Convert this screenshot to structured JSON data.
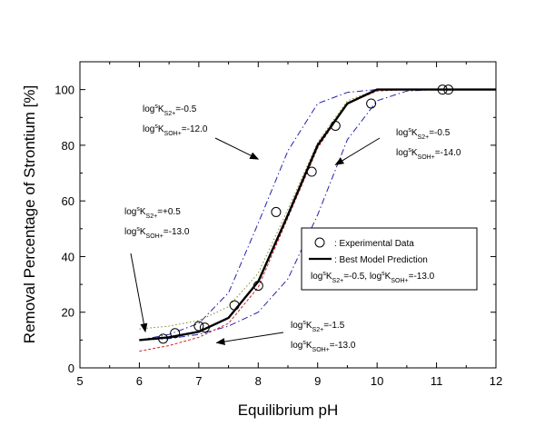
{
  "chart_data": {
    "type": "line",
    "title": "",
    "xlabel": "Equilibrium pH",
    "ylabel": "Removal Percentage of Strontium [%]",
    "xlim": [
      5,
      12
    ],
    "ylim": [
      0,
      110
    ],
    "x_ticks": [
      "5",
      "6",
      "7",
      "8",
      "9",
      "10",
      "11",
      "12"
    ],
    "y_ticks": [
      "0",
      "20",
      "40",
      "60",
      "80",
      "100"
    ],
    "grid": false,
    "legend_position": "right",
    "legend": {
      "experimental_label": ": Experimental Data",
      "model_label": ": Best Model Prediction",
      "params": {
        "k1_prefix": "log",
        "k1_sup": "s",
        "k1_main": "K",
        "k1_sub": "S2+",
        "k1_value": "=-0.5,",
        "k2_prefix": " log",
        "k2_sup": "s",
        "k2_main": "K",
        "k2_sub": "SOH+",
        "k2_value": "=-13.0"
      }
    },
    "series": [
      {
        "name": "Experimental Data",
        "style": "markers",
        "marker": "circle",
        "color": "#000000",
        "x": [
          6.4,
          6.6,
          7.0,
          7.1,
          7.6,
          8.0,
          8.3,
          8.9,
          9.3,
          9.9,
          11.1,
          11.2
        ],
        "y": [
          10.5,
          12.5,
          15,
          14.5,
          22.5,
          29.5,
          56,
          70.5,
          87,
          95,
          100,
          100
        ]
      },
      {
        "name": "Best Model Prediction",
        "style": "solid",
        "color": "#000000",
        "x": [
          6.0,
          6.5,
          7.0,
          7.5,
          8.0,
          8.5,
          9.0,
          9.5,
          10.0,
          10.5,
          11.0,
          12.0
        ],
        "y": [
          10,
          11,
          13,
          18,
          31,
          55,
          80,
          95,
          100,
          100,
          100,
          100
        ]
      },
      {
        "style": "dash-dot",
        "color": "#2222aa",
        "x": [
          6.0,
          6.5,
          7.0,
          7.5,
          8.0,
          8.5,
          9.0,
          9.5,
          10.0,
          10.5,
          12.0
        ],
        "y": [
          10,
          12,
          16,
          27,
          52,
          78,
          95,
          99,
          100,
          100,
          100
        ]
      },
      {
        "style": "dash-dot",
        "color": "#2222aa",
        "x": [
          6.0,
          6.5,
          7.0,
          7.5,
          8.0,
          8.5,
          9.0,
          9.5,
          10.0,
          10.5,
          11.0,
          12.0
        ],
        "y": [
          10,
          10.5,
          12,
          15,
          20,
          32,
          55,
          82,
          96,
          99.5,
          100,
          100
        ]
      },
      {
        "style": "dotted",
        "color": "#888822",
        "x": [
          6.0,
          6.5,
          7.0,
          7.5,
          8.0,
          8.5,
          9.0,
          9.5,
          10.0,
          10.5,
          12.0
        ],
        "y": [
          14,
          15,
          17,
          22,
          34,
          57,
          81,
          96,
          100,
          100,
          100
        ]
      },
      {
        "style": "dashed",
        "color": "#cc2222",
        "x": [
          6.0,
          6.5,
          7.0,
          7.5,
          8.0,
          8.5,
          9.0,
          9.5,
          10.0,
          10.5,
          12.0
        ],
        "y": [
          6,
          8,
          11,
          16,
          29,
          54,
          79,
          95,
          99.5,
          100,
          100
        ]
      }
    ],
    "annotations": [
      {
        "id": "a1",
        "line1": {
          "prefix": "log",
          "sup": "s",
          "main": "K",
          "sub": "S2+",
          "value": "=-0.5"
        },
        "line2": {
          "prefix": "log",
          "sup": "s",
          "main": "K",
          "sub": "SOH+",
          "value": "=-12.0"
        },
        "arrow_target": [
          8.0,
          75
        ]
      },
      {
        "id": "a2",
        "line1": {
          "prefix": "log",
          "sup": "s",
          "main": "K",
          "sub": "S2+",
          "value": "=-0.5"
        },
        "line2": {
          "prefix": "log",
          "sup": "s",
          "main": "K",
          "sub": "SOH+",
          "value": "=-14.0"
        },
        "arrow_target": [
          9.3,
          73
        ]
      },
      {
        "id": "a3",
        "line1": {
          "prefix": "log",
          "sup": "s",
          "main": "K",
          "sub": "S2+",
          "value": "=+0.5"
        },
        "line2": {
          "prefix": "log",
          "sup": "s",
          "main": "K",
          "sub": "SOH+",
          "value": "=-13.0"
        },
        "arrow_target": [
          6.1,
          13
        ]
      },
      {
        "id": "a4",
        "line1": {
          "prefix": "log",
          "sup": "s",
          "main": "K",
          "sub": "S2+",
          "value": "=-1.5"
        },
        "line2": {
          "prefix": "log",
          "sup": "s",
          "main": "K",
          "sub": "SOH+",
          "value": "=-13.0"
        },
        "arrow_target": [
          7.3,
          9
        ]
      }
    ]
  }
}
